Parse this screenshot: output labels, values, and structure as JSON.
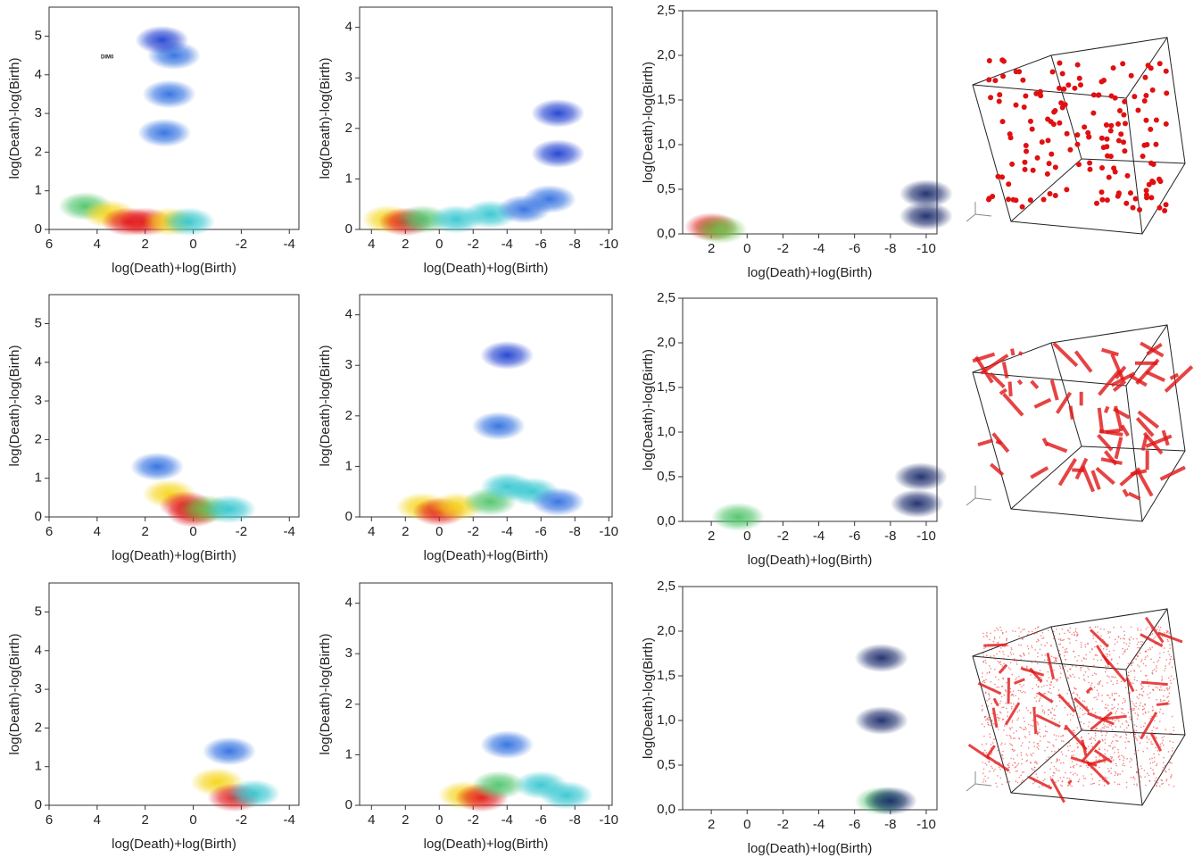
{
  "chart_data": [
    {
      "type": "scatter",
      "x_label": "log(Death)+log(Birth)",
      "y_label": "log(Death)-log(Birth)",
      "annotation": "DIM0",
      "xlim": [
        6,
        -4.4
      ],
      "ylim": [
        0,
        5.75
      ],
      "xticks": [
        6,
        4,
        2,
        0,
        -2,
        -4
      ],
      "yticks": [
        0,
        1,
        2,
        3,
        4,
        5
      ],
      "x": [
        4.5,
        3.5,
        2.7,
        2,
        1,
        0.2,
        1.2,
        1,
        0.8,
        1.3
      ],
      "values": [
        0.6,
        0.4,
        0.2,
        0.2,
        0.2,
        0.2,
        2.5,
        3.5,
        4.5,
        4.9
      ],
      "colors": [
        "#4fc46a",
        "#f5d416",
        "#e31a1c",
        "#e31a1c",
        "#f5d416",
        "#34c6d0",
        "#2f6fe0",
        "#2f6fe0",
        "#2f6fe0",
        "#1f3fd0"
      ]
    },
    {
      "type": "scatter",
      "x_label": "log(Death)+log(Birth)",
      "y_label": "log(Death)-log(Birth)",
      "xlim": [
        4.7,
        -10.2
      ],
      "ylim": [
        0,
        4.4
      ],
      "xticks": [
        4,
        2,
        0,
        -2,
        -4,
        -6,
        -8,
        -10
      ],
      "yticks": [
        0,
        1,
        2,
        3,
        4
      ],
      "x": [
        3,
        2,
        1,
        -1,
        -3,
        -5,
        -6.5,
        -7,
        -7
      ],
      "values": [
        0.2,
        0.15,
        0.2,
        0.2,
        0.3,
        0.4,
        0.6,
        1.5,
        2.3
      ],
      "colors": [
        "#f5d416",
        "#e31a1c",
        "#4fc46a",
        "#34c6d0",
        "#34c6d0",
        "#2f6fe0",
        "#2f6fe0",
        "#1f3fd0",
        "#1f3fd0"
      ]
    },
    {
      "type": "scatter",
      "x_label": "log(Death)+log(Birth)",
      "y_label": "log(Death)-log(Birth)",
      "xlim": [
        3.6,
        -10.6
      ],
      "ylim": [
        0,
        2.5
      ],
      "xticks": [
        2,
        0,
        -2,
        -4,
        -6,
        -8,
        -10
      ],
      "yticks": [
        {
          "value": 0,
          "label": "0,0"
        },
        {
          "value": 0.5,
          "label": "0,5"
        },
        {
          "value": 1,
          "label": "1,0"
        },
        {
          "value": 1.5,
          "label": "1,5"
        },
        {
          "value": 2,
          "label": "2,0"
        },
        {
          "value": 2.5,
          "label": "2,5"
        }
      ],
      "x": [
        2,
        1.5,
        -10,
        -10
      ],
      "values": [
        0.08,
        0.05,
        0.2,
        0.45
      ],
      "colors": [
        "#e31a1c",
        "#6cc24a",
        "#1a2a6a",
        "#1a2a6a"
      ]
    },
    {
      "type": "scatter",
      "x_label": "log(Death)+log(Birth)",
      "y_label": "log(Death)-log(Birth)",
      "xlim": [
        6,
        -4.4
      ],
      "ylim": [
        0,
        5.75
      ],
      "xticks": [
        6,
        4,
        2,
        0,
        -2,
        -4
      ],
      "yticks": [
        0,
        1,
        2,
        3,
        4,
        5
      ],
      "x": [
        1,
        0.3,
        0,
        -0.5,
        -1.5,
        1.5
      ],
      "values": [
        0.6,
        0.3,
        0.1,
        0.2,
        0.2,
        1.3
      ],
      "colors": [
        "#f5d416",
        "#e31a1c",
        "#e31a1c",
        "#6cc24a",
        "#34c6d0",
        "#2f6fe0"
      ]
    },
    {
      "type": "scatter",
      "x_label": "log(Death)+log(Birth)",
      "y_label": "log(Death)-log(Birth)",
      "xlim": [
        4.7,
        -10.2
      ],
      "ylim": [
        0,
        4.4
      ],
      "xticks": [
        4,
        2,
        0,
        -2,
        -4,
        -6,
        -8,
        -10
      ],
      "yticks": [
        0,
        1,
        2,
        3,
        4
      ],
      "x": [
        1,
        0,
        -1,
        -3,
        -4,
        -3.5,
        -4,
        -5.5,
        -7
      ],
      "values": [
        0.2,
        0.1,
        0.2,
        0.3,
        0.6,
        1.8,
        3.2,
        0.5,
        0.3
      ],
      "colors": [
        "#f5d416",
        "#e31a1c",
        "#f5d416",
        "#4fc46a",
        "#34c6d0",
        "#2f6fe0",
        "#1f3fd0",
        "#34c6d0",
        "#2f6fe0"
      ]
    },
    {
      "type": "scatter",
      "x_label": "log(Death)+log(Birth)",
      "y_label": "log(Death)-log(Birth)",
      "xlim": [
        3.6,
        -10.6
      ],
      "ylim": [
        0,
        2.5
      ],
      "xticks": [
        2,
        0,
        -2,
        -4,
        -6,
        -8,
        -10
      ],
      "yticks": [
        {
          "value": 0,
          "label": "0,0"
        },
        {
          "value": 0.5,
          "label": "0,5"
        },
        {
          "value": 1,
          "label": "1,0"
        },
        {
          "value": 1.5,
          "label": "1,5"
        },
        {
          "value": 2,
          "label": "2,0"
        },
        {
          "value": 2.5,
          "label": "2,5"
        }
      ],
      "x": [
        0.5,
        -9.5,
        -9.7
      ],
      "values": [
        0.05,
        0.2,
        0.5
      ],
      "colors": [
        "#4fc46a",
        "#1a2a6a",
        "#1a2a6a"
      ]
    },
    {
      "type": "scatter",
      "x_label": "log(Death)+log(Birth)",
      "y_label": "log(Death)-log(Birth)",
      "xlim": [
        6,
        -4.4
      ],
      "ylim": [
        0,
        5.75
      ],
      "xticks": [
        6,
        4,
        2,
        0,
        -2,
        -4
      ],
      "yticks": [
        0,
        1,
        2,
        3,
        4,
        5
      ],
      "x": [
        -1,
        -1.7,
        -2.5,
        -1.5
      ],
      "values": [
        0.6,
        0.2,
        0.3,
        1.4
      ],
      "colors": [
        "#f5d416",
        "#e31a1c",
        "#34c6d0",
        "#2f6fe0"
      ]
    },
    {
      "type": "scatter",
      "x_label": "log(Death)+log(Birth)",
      "y_label": "log(Death)-log(Birth)",
      "xlim": [
        4.7,
        -10.2
      ],
      "ylim": [
        0,
        4.4
      ],
      "xticks": [
        4,
        2,
        0,
        -2,
        -4,
        -6,
        -8,
        -10
      ],
      "yticks": [
        0,
        1,
        2,
        3,
        4
      ],
      "x": [
        -1.5,
        -2.5,
        -3.5,
        -4,
        -6,
        -7.5
      ],
      "values": [
        0.2,
        0.15,
        0.4,
        1.2,
        0.4,
        0.2
      ],
      "colors": [
        "#f5d416",
        "#e31a1c",
        "#4fc46a",
        "#2f6fe0",
        "#34c6d0",
        "#34c6d0"
      ]
    },
    {
      "type": "scatter",
      "x_label": "log(Death)+log(Birth)",
      "y_label": "log(Death)-log(Birth)",
      "xlim": [
        3.6,
        -10.6
      ],
      "ylim": [
        0,
        2.5
      ],
      "xticks": [
        2,
        0,
        -2,
        -4,
        -6,
        -8,
        -10
      ],
      "yticks": [
        {
          "value": 0,
          "label": "0,0"
        },
        {
          "value": 0.5,
          "label": "0,5"
        },
        {
          "value": 1,
          "label": "1,0"
        },
        {
          "value": 1.5,
          "label": "1,5"
        },
        {
          "value": 2,
          "label": "2,0"
        },
        {
          "value": 2.5,
          "label": "2,5"
        }
      ],
      "x": [
        -7.5,
        -8,
        -7.5,
        -7.5
      ],
      "values": [
        0.1,
        0.1,
        1.0,
        1.7
      ],
      "colors": [
        "#4fc46a",
        "#1a2a6a",
        "#1a2a6a",
        "#1a2a6a"
      ]
    }
  ]
}
